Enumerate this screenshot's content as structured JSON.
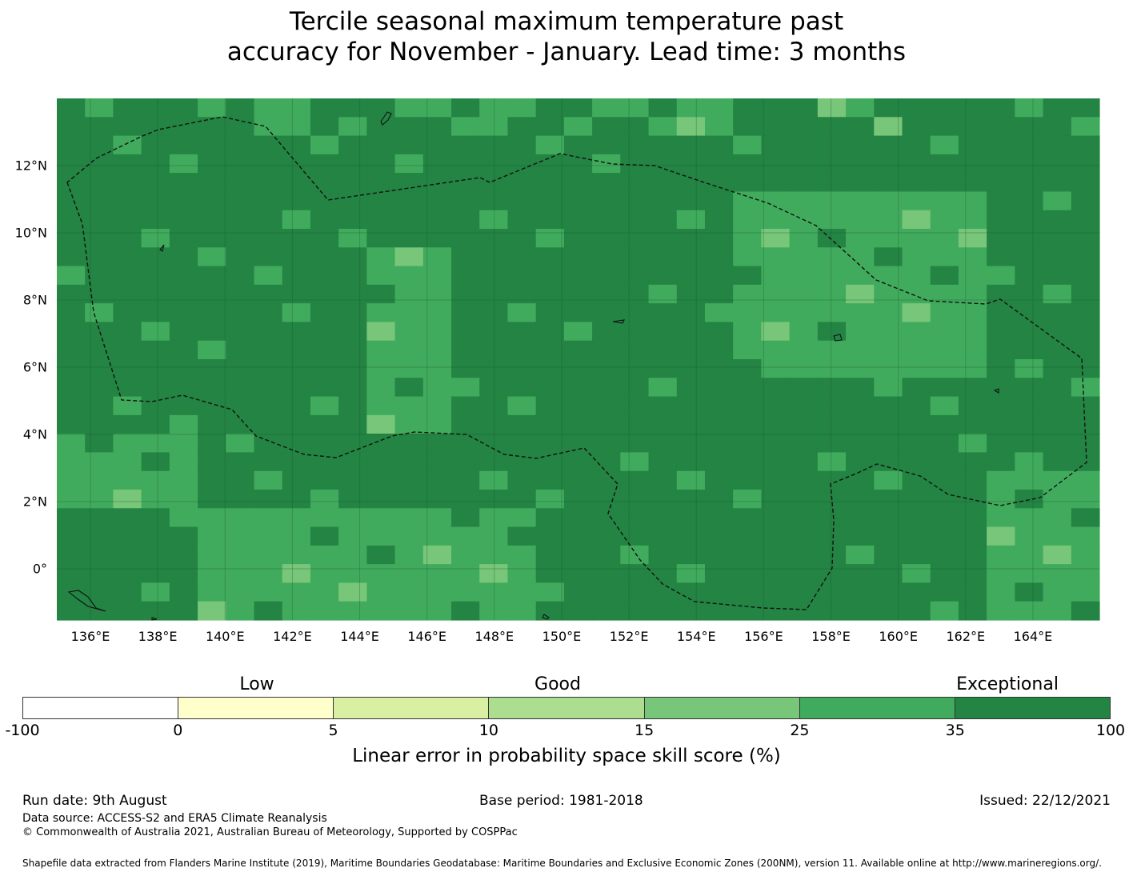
{
  "title_line1": "Tercile seasonal maximum temperature past",
  "title_line2": "accuracy for November - January. Lead time: 3 months",
  "map": {
    "lon_ticks": [
      "136°E",
      "138°E",
      "140°E",
      "142°E",
      "144°E",
      "146°E",
      "148°E",
      "150°E",
      "152°E",
      "154°E",
      "156°E",
      "158°E",
      "160°E",
      "162°E",
      "164°E"
    ],
    "lat_ticks": [
      "12°N",
      "10°N",
      "8°N",
      "6°N",
      "4°N",
      "2°N",
      "0°"
    ]
  },
  "colorbar": {
    "categories": [
      {
        "label": "Low",
        "color": "#ffffcc"
      },
      {
        "label": "Good",
        "color": "#add893"
      },
      {
        "label": "Exceptional",
        "color": "#238444"
      }
    ],
    "bins": [
      {
        "from": -100,
        "to": 0,
        "color": "#ffffff"
      },
      {
        "from": 0,
        "to": 5,
        "color": "#ffffcc"
      },
      {
        "from": 5,
        "to": 10,
        "color": "#d9f0a3"
      },
      {
        "from": 10,
        "to": 15,
        "color": "#addd8e"
      },
      {
        "from": 15,
        "to": 25,
        "color": "#78c679"
      },
      {
        "from": 25,
        "to": 35,
        "color": "#41ab5d"
      },
      {
        "from": 35,
        "to": 100,
        "color": "#238443"
      }
    ],
    "tick_labels": [
      "-100",
      "0",
      "5",
      "10",
      "15",
      "25",
      "35",
      "100"
    ],
    "label": "Linear error in probability space skill score (%)"
  },
  "footer": {
    "run_date": "Run date: 9th August",
    "base_period": "Base period: 1981-2018",
    "issued": "Issued: 22/12/2021",
    "data_source": "Data source: ACCESS-S2 and ERA5 Climate Reanalysis",
    "copyright": "© Commonwealth of Australia 2021, Australian Bureau of Meteorology, Supported by COSPPac",
    "shapefile": "Shapefile data extracted from Flanders Marine Institute (2019), Maritime Boundaries Geodatabase: Maritime Boundaries and Exclusive Economic Zones (200NM), version 11. Available online at http://www.marineregions.org/."
  }
}
